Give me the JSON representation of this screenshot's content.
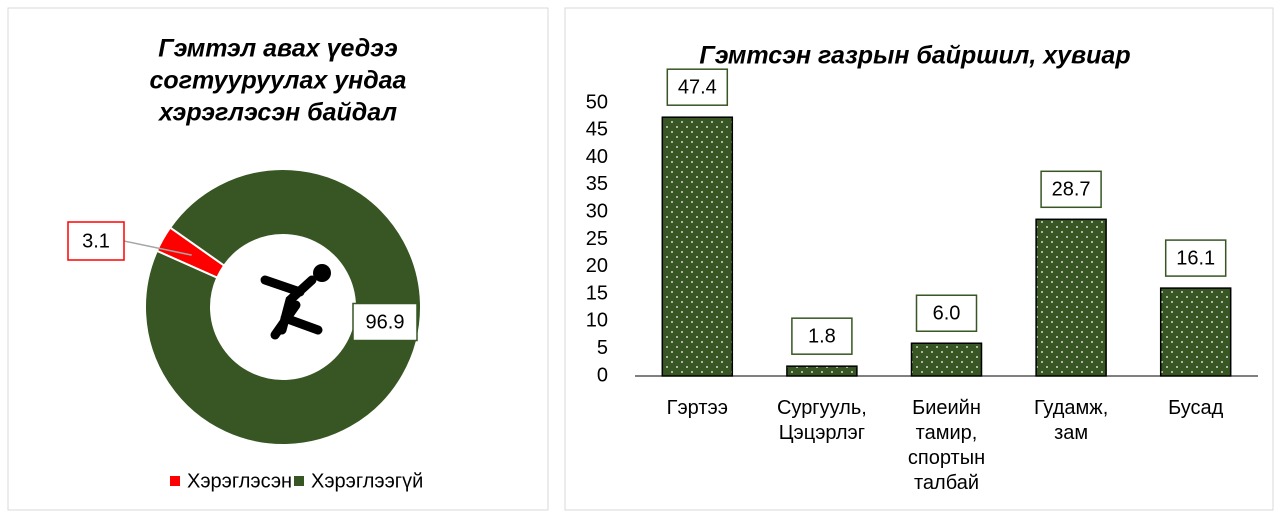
{
  "chart_data": [
    {
      "type": "donut",
      "title": [
        "Гэмтэл авах үедээ",
        "согтууруулах ундаа",
        "хэрэглэсэн байдал"
      ],
      "categories": [
        "Хэрэглэсэн",
        "Хэрэглээгүй"
      ],
      "values": [
        3.1,
        96.9
      ],
      "colors": [
        "#ff0000",
        "#375623"
      ],
      "legend": "bottom"
    },
    {
      "type": "bar",
      "title": "Гэмтсэн газрын байршил, хувиар",
      "categories": [
        "Гэртээ",
        "Сургууль, Цэцэрлэг",
        "Биеийн тамир, спортын талбай",
        "Гудамж, зам",
        "Бусад"
      ],
      "values": [
        47.4,
        1.8,
        6.0,
        28.7,
        16.1
      ],
      "value_labels": [
        "47.4",
        "1.8",
        "6.0",
        "28.7",
        "16.1"
      ],
      "color": "#375623",
      "ylim": [
        0,
        50
      ],
      "yticks": [
        0,
        5,
        10,
        15,
        20,
        25,
        30,
        35,
        40,
        45,
        50
      ],
      "grid": false
    }
  ]
}
